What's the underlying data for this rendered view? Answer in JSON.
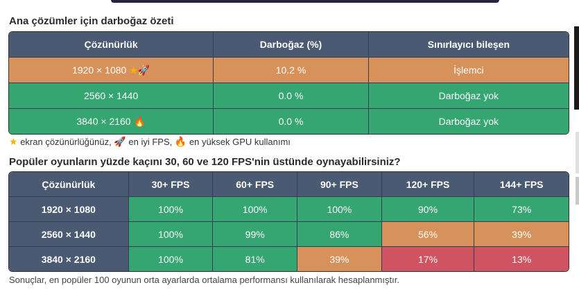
{
  "section1": {
    "title": "Ana çözümler için darboğaz özeti",
    "headers": [
      "Çözünürlük",
      "Darboğaz (%)",
      "Sınırlayıcı bileşen"
    ],
    "rows": [
      {
        "resolution": "1920 × 1080",
        "bottleneck": "10.2 %",
        "component": "İşlemci",
        "icons": [
          "star-icon",
          "rocket-icon"
        ],
        "color": "#d7915b"
      },
      {
        "resolution": "2560 × 1440",
        "bottleneck": "0.0 %",
        "component": "Darboğaz yok",
        "icons": [],
        "color": "#35a572"
      },
      {
        "resolution": "3840 × 2160",
        "bottleneck": "0.0 %",
        "component": "Darboğaz yok",
        "icons": [
          "fire-icon"
        ],
        "color": "#35a572"
      }
    ],
    "legend": {
      "screen_res": "ekran çözünürlüğünüz,",
      "best_fps": "en iyi FPS,",
      "highest_gpu": "en yüksek GPU kullanımı"
    }
  },
  "section2": {
    "title": "Popüler oyunların yüzde kaçını 30, 60 ve 120 FPS'nin üstünde oynayabilirsiniz?",
    "headers": [
      "Çözünürlük",
      "30+ FPS",
      "60+ FPS",
      "90+ FPS",
      "120+ FPS",
      "144+ FPS"
    ],
    "rows": [
      {
        "resolution": "1920 × 1080",
        "values": [
          "100%",
          "100%",
          "100%",
          "90%",
          "73%"
        ]
      },
      {
        "resolution": "2560 × 1440",
        "values": [
          "100%",
          "99%",
          "86%",
          "56%",
          "39%"
        ]
      },
      {
        "resolution": "3840 × 2160",
        "values": [
          "100%",
          "81%",
          "39%",
          "17%",
          "13%"
        ]
      }
    ],
    "footnote": "Sonuçlar, en popüler 100 oyunun orta ayarlarda ortalama performansı kullanılarak hesaplanmıştır."
  },
  "colors": {
    "header": "#4a5a72",
    "good": "#35a572",
    "medium": "#d7915b",
    "bad": "#cf5361"
  }
}
